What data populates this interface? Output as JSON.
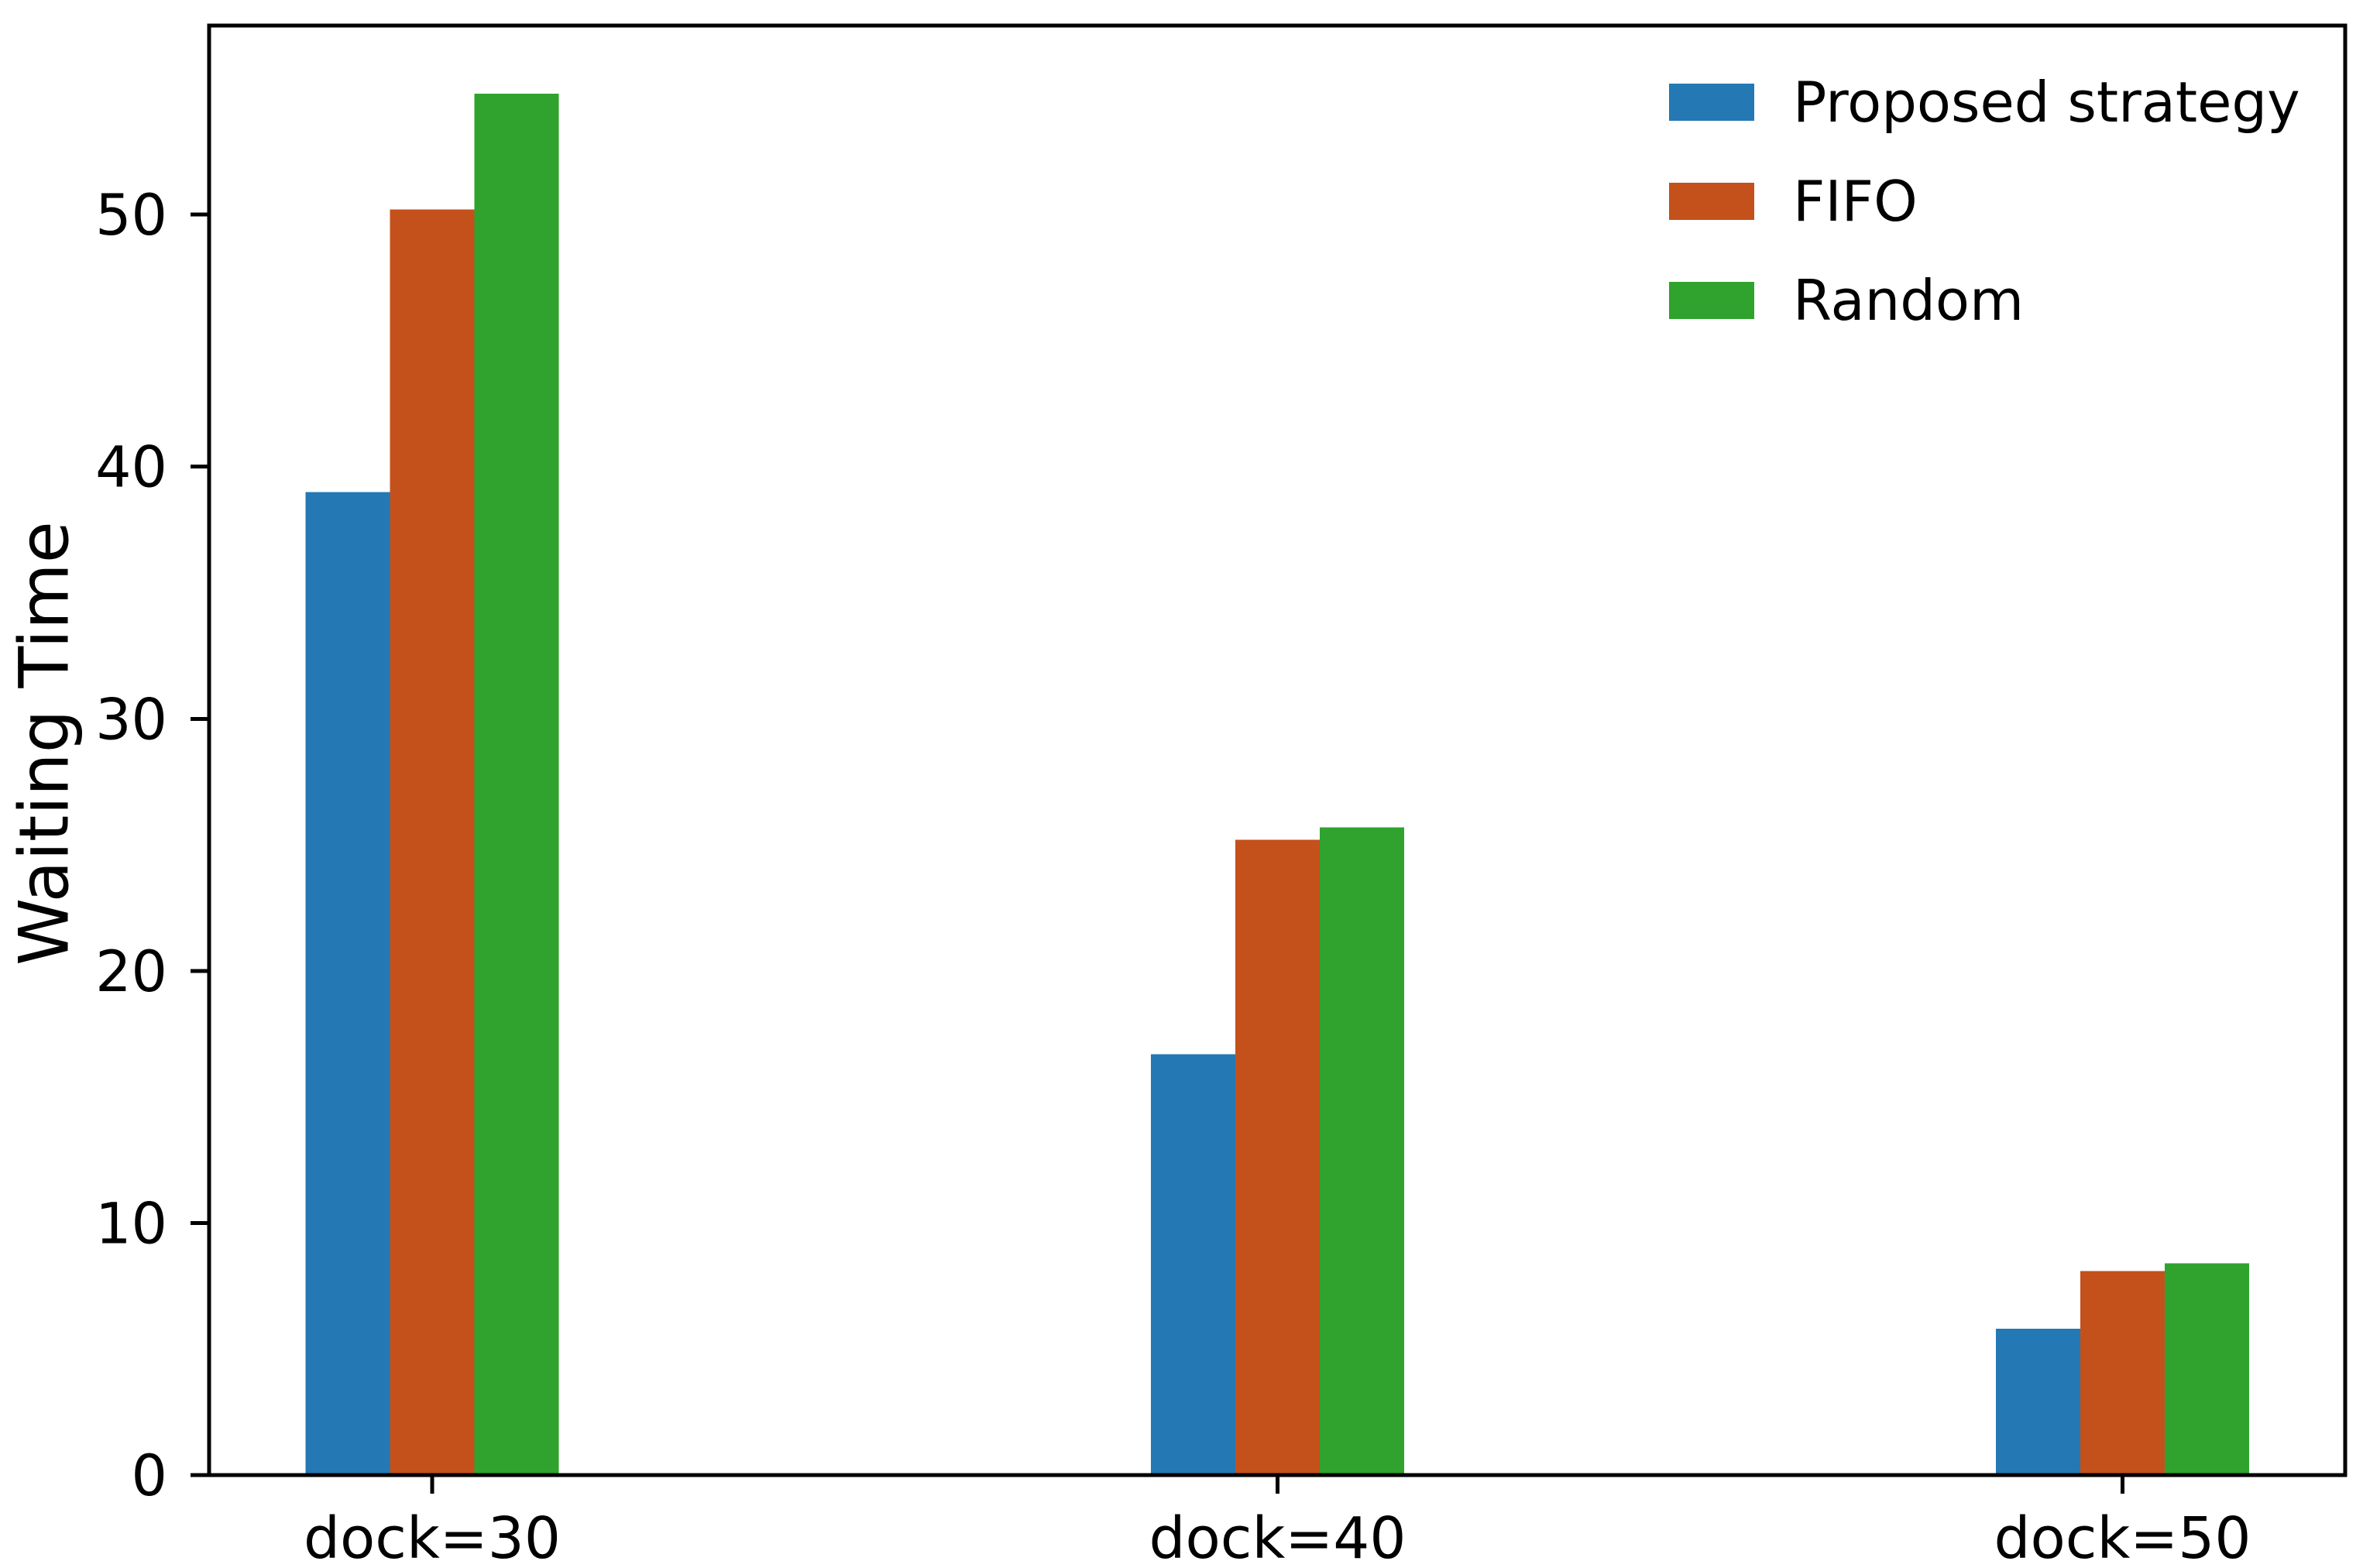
{
  "chart_data": {
    "type": "bar",
    "title": "",
    "xlabel": "",
    "ylabel": "Waiting Time",
    "categories": [
      "dock=30",
      "dock=40",
      "dock=50"
    ],
    "series": [
      {
        "name": "Proposed strategy",
        "color": "#2478b4",
        "values": [
          39.0,
          16.7,
          5.8
        ]
      },
      {
        "name": "FIFO",
        "color": "#c4511b",
        "values": [
          50.2,
          25.2,
          8.1
        ]
      },
      {
        "name": "Random",
        "color": "#2fa32d",
        "values": [
          54.8,
          25.7,
          8.4
        ]
      }
    ],
    "yticks": [
      0,
      10,
      20,
      30,
      40,
      50
    ],
    "ylim": [
      0,
      57.5
    ],
    "grid": false,
    "legend_position": "upper right",
    "legend_frame": false,
    "axis_color": "#000000",
    "text_color": "#000000",
    "background_color": "#ffffff"
  }
}
